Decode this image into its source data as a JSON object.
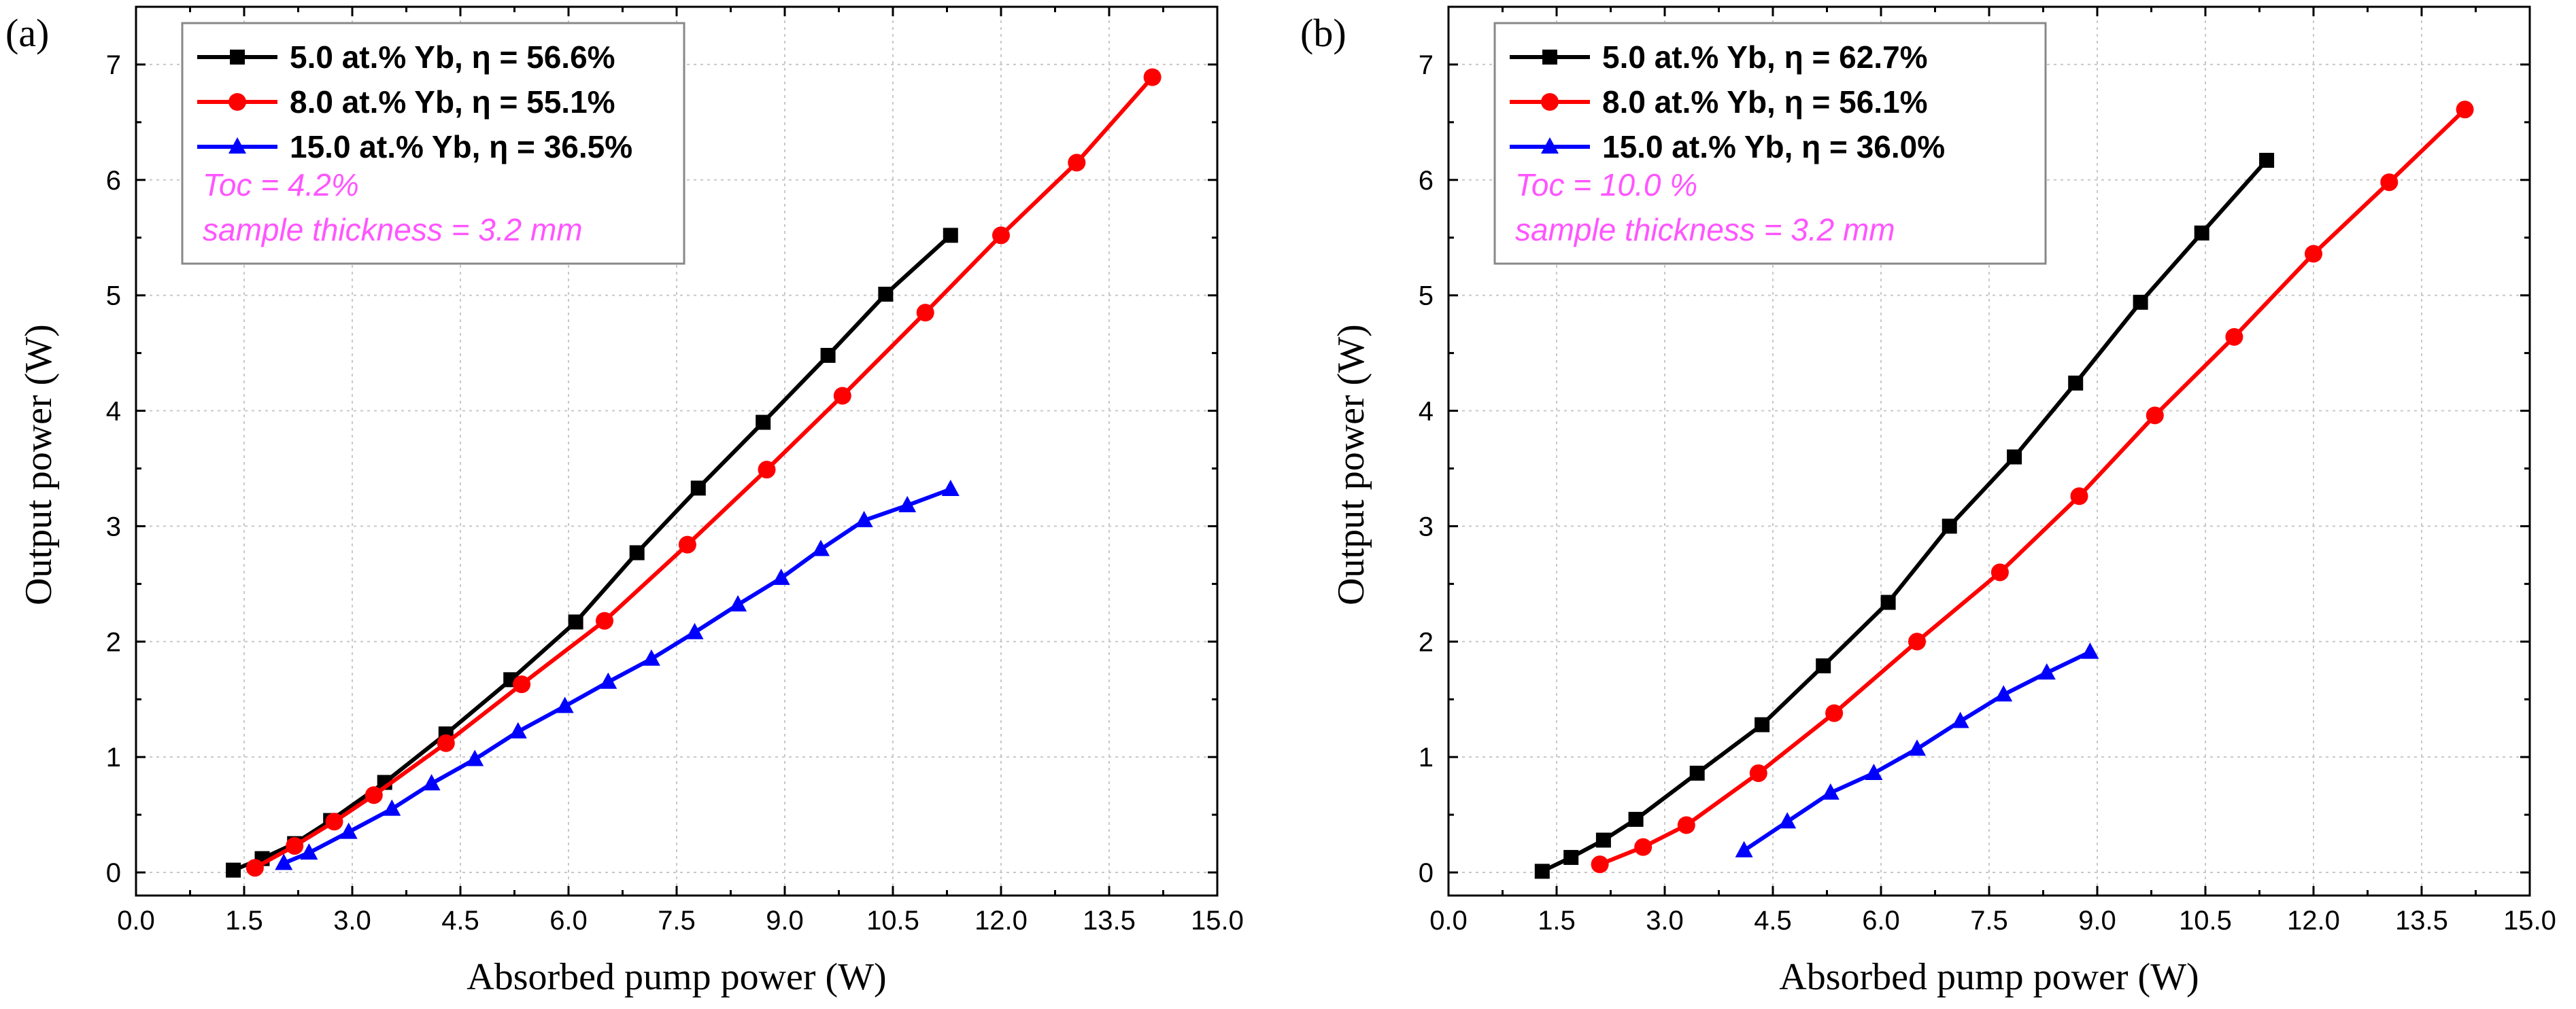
{
  "chart_data": [
    {
      "type": "line",
      "panel_label": "(a)",
      "xlabel": "Absorbed pump power (W)",
      "ylabel": "Output power (W)",
      "xlim": [
        0,
        15
      ],
      "ylim": [
        -0.2,
        7.5
      ],
      "xticks": [
        "0.0",
        "1.5",
        "3.0",
        "4.5",
        "6.0",
        "7.5",
        "9.0",
        "10.5",
        "12.0",
        "13.5",
        "15.0"
      ],
      "yticks": [
        "0",
        "1",
        "2",
        "3",
        "4",
        "5",
        "6",
        "7"
      ],
      "grid": true,
      "legend_position": "top-left",
      "notes": [
        "Toc = 4.2%",
        "sample thickness = 3.2 mm"
      ],
      "series": [
        {
          "name": "5.0 at.% Yb, η = 56.6%",
          "color": "#000000",
          "marker": "square",
          "x": [
            1.35,
            1.75,
            2.2,
            2.7,
            3.45,
            4.3,
            5.2,
            6.1,
            6.95,
            7.8,
            8.7,
            9.6,
            10.4,
            11.3
          ],
          "y": [
            0.02,
            0.12,
            0.25,
            0.45,
            0.78,
            1.2,
            1.67,
            2.17,
            2.77,
            3.33,
            3.9,
            4.48,
            5.01,
            5.52
          ]
        },
        {
          "name": "8.0 at.% Yb, η = 55.1%",
          "color": "#ff0000",
          "marker": "circle",
          "x": [
            1.65,
            2.2,
            2.75,
            3.3,
            4.3,
            5.35,
            6.5,
            7.65,
            8.75,
            9.8,
            10.95,
            12.0,
            13.05,
            14.1
          ],
          "y": [
            0.04,
            0.23,
            0.44,
            0.67,
            1.12,
            1.63,
            2.18,
            2.84,
            3.49,
            4.13,
            4.85,
            5.52,
            6.15,
            6.89
          ]
        },
        {
          "name": "15.0 at.% Yb, η = 36.5%",
          "color": "#0000ff",
          "marker": "triangle",
          "x": [
            2.05,
            2.4,
            2.95,
            3.55,
            4.1,
            4.7,
            5.3,
            5.95,
            6.55,
            7.15,
            7.75,
            8.35,
            8.95,
            9.5,
            10.1,
            10.7,
            11.3
          ],
          "y": [
            0.08,
            0.17,
            0.35,
            0.55,
            0.77,
            0.98,
            1.22,
            1.44,
            1.65,
            1.85,
            2.08,
            2.32,
            2.55,
            2.8,
            3.05,
            3.18,
            3.32
          ]
        }
      ]
    },
    {
      "type": "line",
      "panel_label": "(b)",
      "xlabel": "Absorbed pump power (W)",
      "ylabel": "Output power (W)",
      "xlim": [
        0,
        15
      ],
      "ylim": [
        -0.2,
        7.5
      ],
      "xticks": [
        "0.0",
        "1.5",
        "3.0",
        "4.5",
        "6.0",
        "7.5",
        "9.0",
        "10.5",
        "12.0",
        "13.5",
        "15.0"
      ],
      "yticks": [
        "0",
        "1",
        "2",
        "3",
        "4",
        "5",
        "6",
        "7"
      ],
      "grid": true,
      "legend_position": "top-left",
      "notes": [
        "Toc = 10.0 %",
        "sample thickness = 3.2 mm"
      ],
      "series": [
        {
          "name": "5.0 at.% Yb, η = 62.7%",
          "color": "#000000",
          "marker": "square",
          "x": [
            1.3,
            1.7,
            2.15,
            2.6,
            3.45,
            4.35,
            5.2,
            6.1,
            6.95,
            7.85,
            8.7,
            9.6,
            10.45,
            11.35
          ],
          "y": [
            0.01,
            0.13,
            0.28,
            0.46,
            0.86,
            1.28,
            1.79,
            2.34,
            3.0,
            3.6,
            4.24,
            4.94,
            5.54,
            6.17
          ]
        },
        {
          "name": "8.0 at.% Yb, η = 56.1%",
          "color": "#ff0000",
          "marker": "circle",
          "x": [
            2.1,
            2.7,
            3.3,
            4.3,
            5.35,
            6.5,
            7.65,
            8.75,
            9.8,
            10.9,
            12.0,
            13.05,
            14.1
          ],
          "y": [
            0.07,
            0.22,
            0.41,
            0.86,
            1.38,
            2.0,
            2.6,
            3.26,
            3.96,
            4.64,
            5.36,
            5.98,
            6.61
          ]
        },
        {
          "name": "15.0 at.% Yb, η = 36.0%",
          "color": "#0000ff",
          "marker": "triangle",
          "x": [
            4.1,
            4.7,
            5.3,
            5.9,
            6.5,
            7.1,
            7.7,
            8.3,
            8.9
          ],
          "y": [
            0.19,
            0.44,
            0.69,
            0.86,
            1.07,
            1.31,
            1.54,
            1.73,
            1.91
          ]
        }
      ]
    }
  ]
}
